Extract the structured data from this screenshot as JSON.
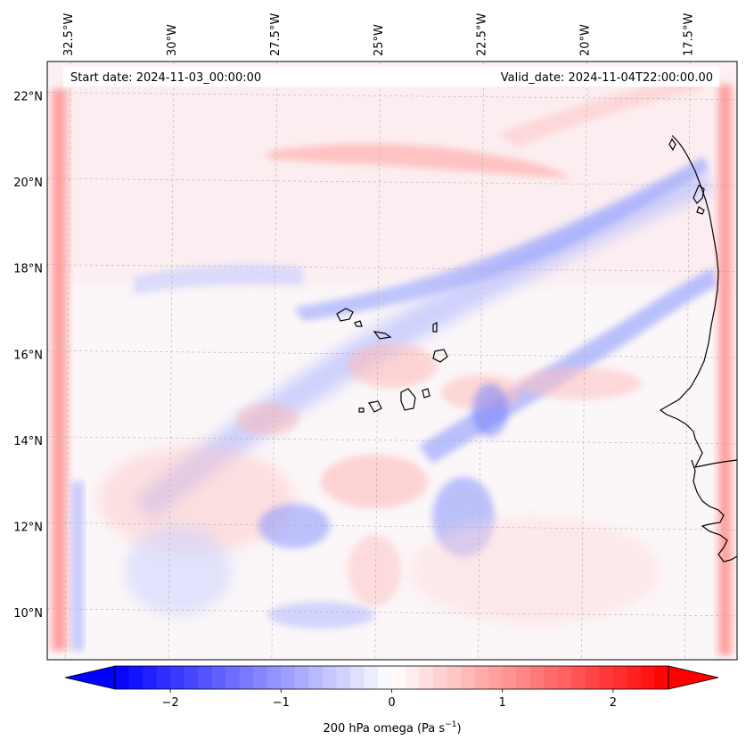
{
  "header": {
    "start_date": "Start date: 2024-11-03_00:00:00",
    "valid_date": "Valid_date: 2024-11-04T22:00:00.00"
  },
  "map": {
    "lon_labels": [
      "32.5°W",
      "30°W",
      "27.5°W",
      "25°W",
      "22.5°W",
      "20°W",
      "17.5°W"
    ],
    "lat_labels": [
      "22°N",
      "20°N",
      "18°N",
      "16°N",
      "14°N",
      "12°N",
      "10°N"
    ],
    "lon_values": [
      -32.5,
      -30,
      -27.5,
      -25,
      -22.5,
      -20,
      -17.5
    ],
    "lat_values": [
      22,
      20,
      18,
      16,
      14,
      12,
      10
    ],
    "lon_range": [
      -33.0,
      -16.3
    ],
    "lat_range": [
      8.9,
      22.8
    ],
    "gridlines": true,
    "colors": {
      "neg": "#0000ff",
      "pos": "#ff0000",
      "mid": "#ffffff",
      "coast": "#000000",
      "grid": "#b0b0b0"
    }
  },
  "colorbar": {
    "label_main": "200 hPa omega (Pa s",
    "label_exp": "−1",
    "label_close": ")",
    "ticks": [
      "−2",
      "−1",
      "0",
      "1",
      "2"
    ],
    "tick_values": [
      -2,
      -1,
      0,
      1,
      2
    ],
    "range": [
      -2.5,
      2.5
    ],
    "extend": "both"
  }
}
